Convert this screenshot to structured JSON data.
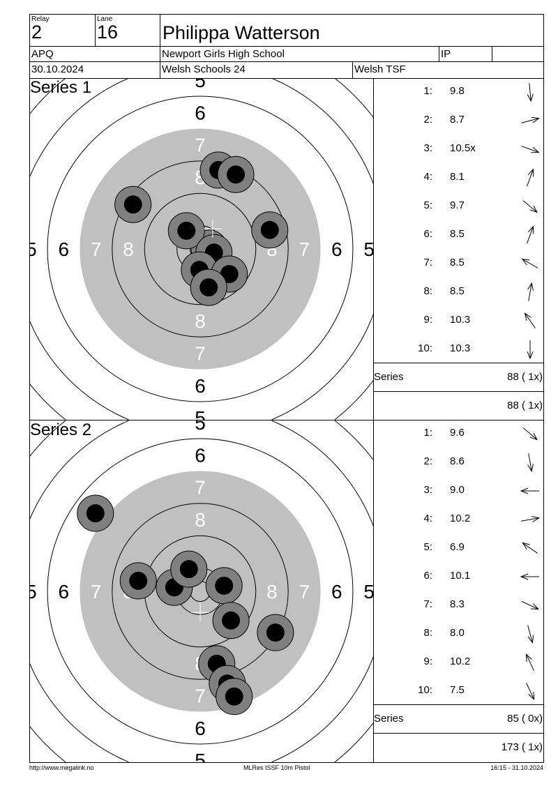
{
  "header": {
    "relay_label": "Relay",
    "relay": "2",
    "lane_label": "Lane",
    "lane": "16",
    "shooter_name": "Philippa Watterson",
    "class": "APQ",
    "club": "Newport Girls High School",
    "ip_label": "IP",
    "date": "30.10.2024",
    "competition": "Welsh Schools 24",
    "organizer": "Welsh TSF"
  },
  "colors": {
    "black_area": "#c0c0c0",
    "shot_ring": "#808080",
    "shot_center": "#000000",
    "group_cross": "#ffffff"
  },
  "series": [
    {
      "title": "Series 1",
      "shots": [
        {
          "num": "1:",
          "value": "9.8",
          "direction_deg": 175
        },
        {
          "num": "2:",
          "value": "8.7",
          "direction_deg": 75
        },
        {
          "num": "3:",
          "value": "10.5x",
          "direction_deg": 110
        },
        {
          "num": "4:",
          "value": "8.1",
          "direction_deg": 20
        },
        {
          "num": "5:",
          "value": "9.7",
          "direction_deg": 130
        },
        {
          "num": "6:",
          "value": "8.5",
          "direction_deg": 20
        },
        {
          "num": "7:",
          "value": "8.5",
          "direction_deg": 300
        },
        {
          "num": "8:",
          "value": "8.5",
          "direction_deg": 10
        },
        {
          "num": "9:",
          "value": "10.3",
          "direction_deg": 325
        },
        {
          "num": "10:",
          "value": "10.3",
          "direction_deg": 180
        }
      ],
      "hits_mm": [
        [
          2.2,
          -0.2
        ],
        [
          4.5,
          -19.5
        ],
        [
          8.8,
          -18.4
        ],
        [
          -16.6,
          -11.0
        ],
        [
          -3.4,
          -4.5
        ],
        [
          17.2,
          -4.7
        ],
        [
          3.4,
          0.9
        ],
        [
          -0.2,
          5.2
        ],
        [
          7.2,
          6.2
        ],
        [
          2.1,
          9.5
        ]
      ],
      "group_center_mm": [
        3.1,
        -5.0
      ],
      "series_label": "Series",
      "series_total": "88 ( 1x)",
      "running_total": "88 ( 1x)"
    },
    {
      "title": "Series 2",
      "shots": [
        {
          "num": "1:",
          "value": "9.6",
          "direction_deg": 130
        },
        {
          "num": "2:",
          "value": "8.6",
          "direction_deg": 170
        },
        {
          "num": "3:",
          "value": "9.0",
          "direction_deg": 270
        },
        {
          "num": "4:",
          "value": "10.2",
          "direction_deg": 80
        },
        {
          "num": "5:",
          "value": "6.9",
          "direction_deg": 305
        },
        {
          "num": "6:",
          "value": "10.1",
          "direction_deg": 270
        },
        {
          "num": "7:",
          "value": "8.3",
          "direction_deg": 115
        },
        {
          "num": "8:",
          "value": "8.0",
          "direction_deg": 165
        },
        {
          "num": "9:",
          "value": "10.2",
          "direction_deg": 335
        },
        {
          "num": "10:",
          "value": "7.5",
          "direction_deg": 155
        }
      ],
      "hits_mm": [
        [
          -25.9,
          -19.3
        ],
        [
          -15.3,
          -2.6
        ],
        [
          -6.4,
          -1.0
        ],
        [
          -2.8,
          -5.5
        ],
        [
          5.9,
          -1.4
        ],
        [
          7.6,
          7.2
        ],
        [
          18.6,
          10.2
        ],
        [
          4.1,
          17.9
        ],
        [
          6.7,
          22.8
        ],
        [
          8.4,
          26.0
        ]
      ],
      "group_center_mm": [
        0,
        5.2
      ],
      "series_label": "Series",
      "series_total": "85 ( 0x)",
      "running_total": "173 ( 1x)"
    }
  ],
  "target": {
    "ring_labels": [
      "5",
      "6",
      "7",
      "8"
    ],
    "black_from_ring": 7
  },
  "footer": {
    "website": "http://www.megalink.no",
    "program": "MLRes ISSF 10m Pistol",
    "printed": "16:15 - 31.10.2024"
  }
}
